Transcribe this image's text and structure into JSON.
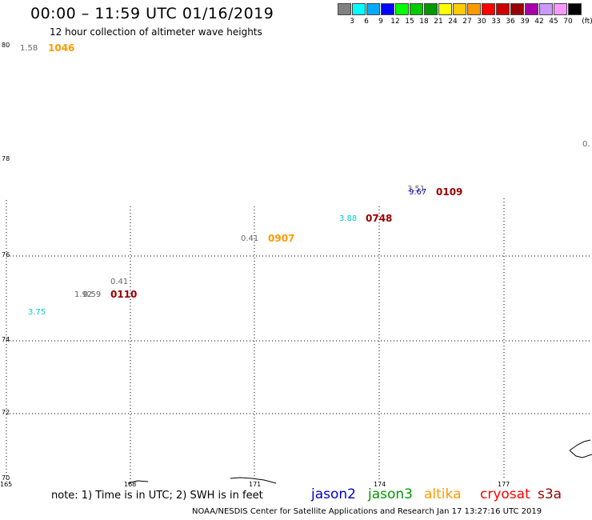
{
  "header": {
    "title": "00:00 – 11:59 UTC 01/16/2019",
    "subtitle": "12 hour collection of altimeter wave heights"
  },
  "colorbar": {
    "unit": "(ft)",
    "colors": [
      "#808080",
      "#00ffff",
      "#00aaff",
      "#0000ff",
      "#00ff00",
      "#00cc00",
      "#009900",
      "#ffff00",
      "#ffcc00",
      "#ff9900",
      "#ff0000",
      "#cc0000",
      "#990000",
      "#aa00aa",
      "#cc99ff",
      "#ff99ff",
      "#000000"
    ],
    "labels": [
      "3",
      "6",
      "9",
      "12",
      "15",
      "18",
      "21",
      "24",
      "27",
      "30",
      "33",
      "36",
      "39",
      "42",
      "45",
      "70"
    ]
  },
  "axes": {
    "lat_labels": [
      "80",
      "78",
      "76",
      "74",
      "72",
      "70"
    ],
    "lon_labels": [
      "165",
      "168",
      "171",
      "174",
      "177"
    ]
  },
  "observations": [
    {
      "swh": "1.58",
      "swh_color": "#666666",
      "time": "1046",
      "time_color": "#ff9900"
    },
    {
      "swh": "3.51",
      "swh_color": "#666666",
      "time": "",
      "time_color": "#000"
    },
    {
      "swh": "9.67",
      "swh_color": "#0000cc",
      "time": "0109",
      "time_color": "#990000"
    },
    {
      "swh": "3.88",
      "swh_color": "#00cccc",
      "time": "0748",
      "time_color": "#990000"
    },
    {
      "swh": "0.41",
      "swh_color": "#666666",
      "time": "0907",
      "time_color": "#ff9900"
    },
    {
      "swh": "0.41",
      "swh_color": "#666666",
      "time": "",
      "time_color": "#000"
    },
    {
      "swh": "1.92",
      "swh_color": "#666666",
      "time": "",
      "time_color": "#000"
    },
    {
      "swh": "0.59",
      "swh_color": "#666666",
      "time": "0110",
      "time_color": "#990000"
    },
    {
      "swh": "3.75",
      "swh_color": "#00cccc",
      "time": "",
      "time_color": "#000"
    },
    {
      "swh": "0.",
      "swh_color": "#666666",
      "time": "",
      "time_color": "#000"
    }
  ],
  "footer": {
    "note": "note: 1) Time is in UTC; 2) SWH is in feet",
    "satellites": [
      {
        "name": "jason2",
        "color": "#0000cc"
      },
      {
        "name": "jason3",
        "color": "#009900"
      },
      {
        "name": "altika",
        "color": "#ff9900"
      },
      {
        "name": "cryosat",
        "color": "#ff0000"
      },
      {
        "name": "s3a",
        "color": "#990000"
      }
    ],
    "credit": "NOAA/NESDIS Center for Satellite Applications and Research     Jan 17 13:27:16 UTC 2019"
  }
}
